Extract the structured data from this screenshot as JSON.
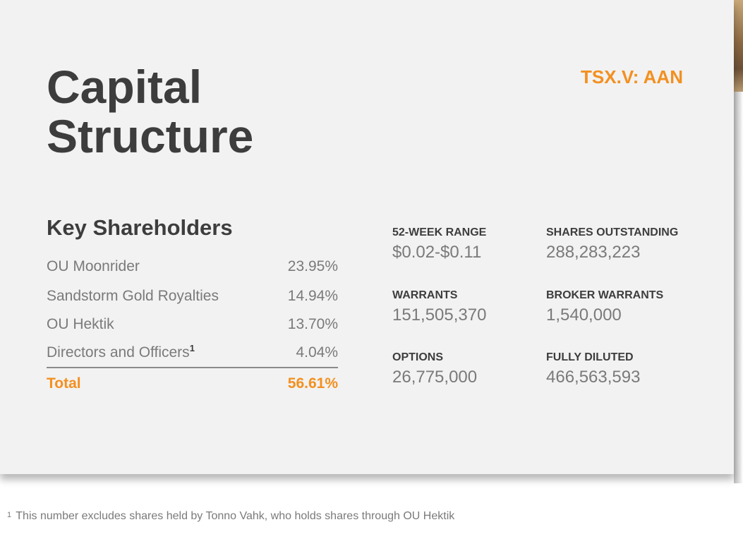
{
  "title_lines": [
    "Capital",
    "Structure"
  ],
  "ticker": "TSX.V: AAN",
  "key_shareholders": {
    "heading": "Key Shareholders",
    "rows": [
      {
        "name": "OU Moonrider",
        "pct": "23.95%"
      },
      {
        "name": "Sandstorm Gold Royalties",
        "pct": "14.94%"
      },
      {
        "name": "OU Hektik",
        "pct": "13.70%"
      },
      {
        "name": "Directors and Officers",
        "footnote_mark": "1",
        "pct": "4.04%"
      }
    ],
    "total": {
      "name": "Total",
      "pct": "56.61%"
    }
  },
  "stats": [
    {
      "label": "52-WEEK RANGE",
      "value": "$0.02-$0.11"
    },
    {
      "label": "SHARES OUTSTANDING",
      "value": "288,283,223"
    },
    {
      "label": "WARRANTS",
      "value": "151,505,370"
    },
    {
      "label": "BROKER WARRANTS",
      "value": "1,540,000"
    },
    {
      "label": "OPTIONS",
      "value": "26,775,000"
    },
    {
      "label": "FULLY DILUTED",
      "value": "466,563,593"
    }
  ],
  "footnote": {
    "mark": "1",
    "text": "This number excludes shares held by Tonno Vahk, who holds shares through OU Hektik"
  },
  "colors": {
    "accent": "#f39020",
    "heading": "#3d3d3d",
    "body": "#7a7a7a",
    "panel": "#f2f2f2"
  }
}
